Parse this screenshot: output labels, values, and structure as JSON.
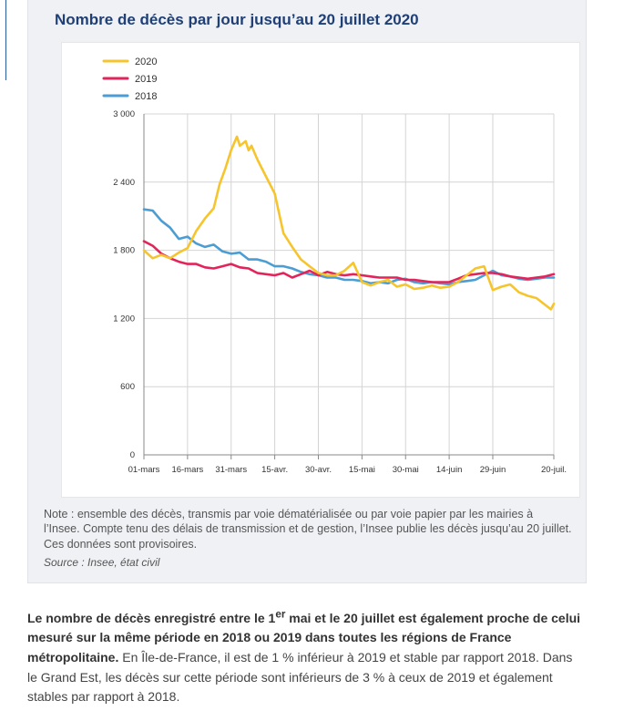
{
  "card": {
    "title": "Nombre de décès par jour jusqu’au 20 juillet 2020",
    "note": "Note : ensemble des décès, transmis par voie dématérialisée ou par voie papier par les mairies à l’Insee. Compte tenu des délais de transmission et de gestion, l’Insee publie les décès jusqu’au 20 juillet. Ces données sont provisoires.",
    "source": "Source : Insee, état civil"
  },
  "paragraph": {
    "bold_part1": "Le nombre de décès enregistré entre le 1",
    "bold_sup": "er",
    "bold_part2": " mai et le 20 juillet est également proche de celui mesuré sur la même période en 2018 ou 2019 dans toutes les régions de France métropolitaine.",
    "rest": " En Île-de-France, il est de 1 % inférieur à 2019 et stable par rapport 2018. Dans le Grand Est, les décès sur cette période sont inférieurs de 3 % à ceux de 2019 et également stables par rapport à 2018."
  },
  "colors": {
    "s2020": "#f6c52d",
    "s2019": "#e3245a",
    "s2018": "#4b9dd3",
    "grid": "#d4d4d4",
    "axis": "#888888"
  },
  "chart_data": {
    "type": "line",
    "title": "Nombre de décès par jour jusqu’au 20 juillet 2020",
    "ylim": [
      0,
      3000
    ],
    "yticks": [
      0,
      600,
      1200,
      1800,
      2400,
      3000
    ],
    "ytick_labels": [
      "0",
      "600",
      "1 200",
      "1 800",
      "2 400",
      "3 000"
    ],
    "xlim": [
      0,
      141
    ],
    "xticks": [
      0,
      15,
      30,
      45,
      60,
      75,
      90,
      105,
      120,
      141
    ],
    "xtick_labels": [
      "01-mars",
      "16-mars",
      "31-mars",
      "15-avr.",
      "30-avr.",
      "15-mai",
      "30-mai",
      "14-juin",
      "29-juin",
      "20-juil."
    ],
    "grid": true,
    "legend_position": "top-left",
    "series": [
      {
        "name": "2020",
        "x": [
          0,
          3,
          6,
          9,
          12,
          15,
          18,
          21,
          24,
          26,
          28,
          30,
          32,
          33,
          35,
          36,
          37,
          39,
          42,
          45,
          48,
          51,
          54,
          57,
          60,
          63,
          66,
          69,
          72,
          75,
          78,
          81,
          84,
          87,
          90,
          93,
          96,
          99,
          102,
          105,
          108,
          111,
          114,
          117,
          120,
          123,
          126,
          129,
          132,
          135,
          138,
          140,
          141
        ],
        "y": [
          1800,
          1730,
          1760,
          1730,
          1780,
          1820,
          1970,
          2080,
          2170,
          2380,
          2520,
          2680,
          2800,
          2720,
          2760,
          2680,
          2720,
          2600,
          2450,
          2300,
          1950,
          1830,
          1720,
          1660,
          1600,
          1580,
          1580,
          1620,
          1690,
          1520,
          1490,
          1520,
          1540,
          1480,
          1500,
          1460,
          1470,
          1490,
          1470,
          1480,
          1520,
          1580,
          1640,
          1660,
          1450,
          1480,
          1500,
          1430,
          1400,
          1380,
          1320,
          1280,
          1330
        ]
      },
      {
        "name": "2019",
        "x": [
          0,
          3,
          6,
          9,
          12,
          15,
          18,
          21,
          24,
          27,
          30,
          33,
          36,
          39,
          42,
          45,
          48,
          51,
          54,
          57,
          60,
          63,
          66,
          69,
          72,
          75,
          78,
          81,
          84,
          87,
          90,
          93,
          96,
          99,
          102,
          105,
          108,
          111,
          114,
          117,
          120,
          123,
          126,
          129,
          132,
          135,
          138,
          141
        ],
        "y": [
          1880,
          1840,
          1770,
          1730,
          1700,
          1680,
          1680,
          1650,
          1640,
          1660,
          1680,
          1650,
          1640,
          1600,
          1590,
          1580,
          1600,
          1560,
          1590,
          1620,
          1580,
          1610,
          1590,
          1580,
          1590,
          1580,
          1570,
          1560,
          1560,
          1560,
          1540,
          1540,
          1530,
          1520,
          1520,
          1520,
          1550,
          1580,
          1590,
          1600,
          1600,
          1590,
          1570,
          1560,
          1550,
          1560,
          1570,
          1590
        ]
      },
      {
        "name": "2018",
        "x": [
          0,
          3,
          6,
          9,
          12,
          15,
          18,
          21,
          24,
          27,
          30,
          33,
          36,
          39,
          42,
          45,
          48,
          51,
          54,
          57,
          60,
          63,
          66,
          69,
          72,
          75,
          78,
          81,
          84,
          87,
          90,
          93,
          96,
          99,
          102,
          105,
          108,
          111,
          114,
          117,
          120,
          123,
          126,
          129,
          132,
          135,
          138,
          141
        ],
        "y": [
          2160,
          2150,
          2060,
          2000,
          1900,
          1920,
          1860,
          1830,
          1850,
          1790,
          1770,
          1780,
          1720,
          1720,
          1700,
          1660,
          1660,
          1640,
          1610,
          1590,
          1580,
          1560,
          1560,
          1540,
          1540,
          1530,
          1510,
          1520,
          1510,
          1540,
          1550,
          1520,
          1510,
          1520,
          1510,
          1500,
          1520,
          1530,
          1540,
          1580,
          1620,
          1580,
          1570,
          1550,
          1540,
          1550,
          1560,
          1560
        ]
      }
    ]
  }
}
